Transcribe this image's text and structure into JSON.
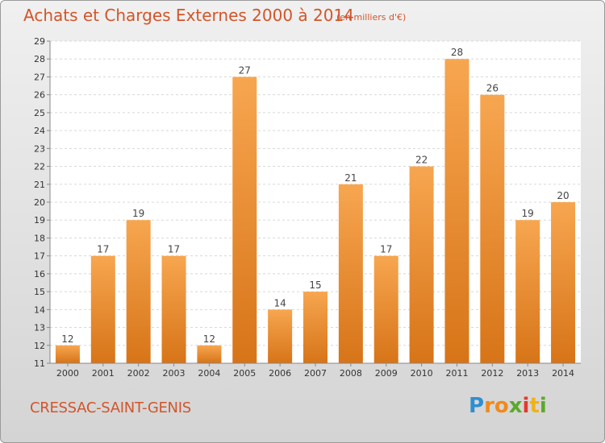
{
  "page": {
    "title": "Achats et Charges Externes 2000 à 2014",
    "unit": "(en milliers d'€)",
    "place": "CRESSAC-SAINT-GENIS",
    "logo": {
      "letters": [
        "P",
        "r",
        "o",
        "x",
        "i",
        "t",
        "i"
      ],
      "colors": [
        "#2e8fd0",
        "#f08a1c",
        "#f08a1c",
        "#5aaa2a",
        "#e23b2b",
        "#f0b21c",
        "#5aaa2a"
      ]
    }
  },
  "chart_data": {
    "type": "bar",
    "title": "Achats et Charges Externes 2000 à 2014",
    "subtitle": "(en milliers d'€)",
    "categories": [
      "2000",
      "2001",
      "2002",
      "2003",
      "2004",
      "2005",
      "2006",
      "2007",
      "2008",
      "2009",
      "2010",
      "2011",
      "2012",
      "2013",
      "2014"
    ],
    "values": [
      12,
      17,
      19,
      17,
      12,
      27,
      14,
      15,
      21,
      17,
      22,
      28,
      26,
      19,
      20
    ],
    "ylim": [
      11,
      29
    ],
    "yticks": [
      11,
      12,
      13,
      14,
      15,
      16,
      17,
      18,
      19,
      20,
      21,
      22,
      23,
      24,
      25,
      26,
      27,
      28,
      29
    ],
    "grid": true,
    "bar_color": "#f0963c"
  }
}
